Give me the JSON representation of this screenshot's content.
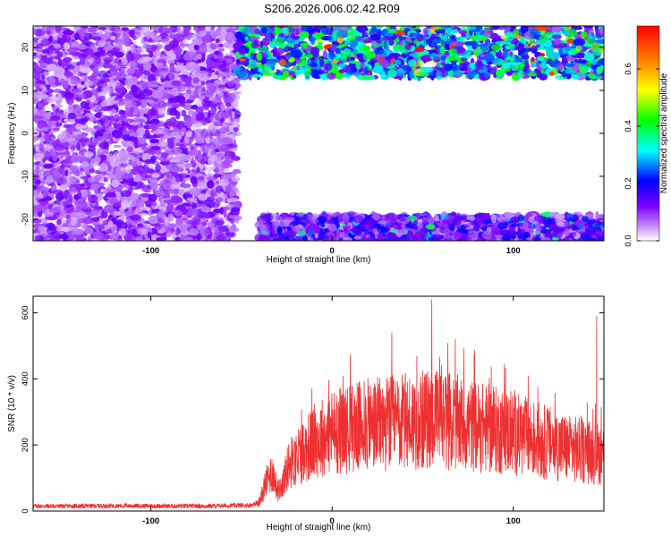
{
  "figure_title": "S206.2026.006.02.42.R09",
  "colors": {
    "signal": "#ee3030",
    "axis": "#000000",
    "colormap": [
      "#ffffff",
      "#cc99ff",
      "#7f00ff",
      "#0000ff",
      "#00ffff",
      "#00ff00",
      "#ffff00",
      "#ff8000",
      "#ff0000"
    ]
  },
  "chart_data": [
    {
      "type": "heatmap",
      "title": "",
      "xlabel": "Height of straight line (km)",
      "ylabel": "Frequency (Hz)",
      "xlim": [
        -165,
        150
      ],
      "ylim": [
        -25,
        25
      ],
      "xticks": [
        -100,
        0,
        100
      ],
      "yticks": [
        -20,
        -10,
        0,
        10,
        20
      ],
      "colorbar": {
        "label": "Normalized spectral amplitude",
        "range": [
          0,
          0.75
        ],
        "ticks": [
          0.0,
          0.2,
          0.4,
          0.6
        ]
      },
      "regions": [
        {
          "description_x": [
            -165,
            -52
          ],
          "frequency_band": [
            -25,
            25
          ],
          "typical_amplitude": 0.1
        },
        {
          "description_x": [
            -52,
            150
          ],
          "frequency_band": [
            13,
            25
          ],
          "typical_amplitude": 0.3,
          "peak_amplitude": 0.75
        },
        {
          "description_x": [
            -40,
            150
          ],
          "frequency_band": [
            -25,
            -19
          ],
          "typical_amplitude": 0.15,
          "peak_amplitude": 0.4
        }
      ]
    },
    {
      "type": "line",
      "title": "",
      "xlabel": "Height of straight line (km)",
      "ylabel": "SNR (10 * v/v)",
      "xlim": [
        -165,
        150
      ],
      "ylim": [
        0,
        650
      ],
      "xticks": [
        -100,
        0,
        100
      ],
      "yticks": [
        0,
        200,
        400,
        600
      ],
      "series": [
        {
          "x": [
            -165,
            -140,
            -115,
            -90,
            -65,
            -45,
            -40,
            -37,
            -33,
            -30,
            -27,
            -24,
            -20,
            -15,
            -10,
            0,
            10,
            20,
            30,
            40,
            50,
            60,
            70,
            80,
            90,
            100,
            110,
            120,
            130,
            140,
            150
          ],
          "values": [
            15,
            15,
            16,
            15,
            15,
            18,
            25,
            80,
            120,
            60,
            90,
            140,
            160,
            185,
            210,
            240,
            250,
            260,
            265,
            270,
            275,
            280,
            265,
            255,
            245,
            235,
            220,
            205,
            190,
            180,
            170
          ],
          "peaks": [
            {
              "x": 55,
              "value": 640
            },
            {
              "x": 33,
              "value": 540
            },
            {
              "x": 146,
              "value": 590
            },
            {
              "x": 68,
              "value": 520
            }
          ]
        }
      ]
    }
  ]
}
